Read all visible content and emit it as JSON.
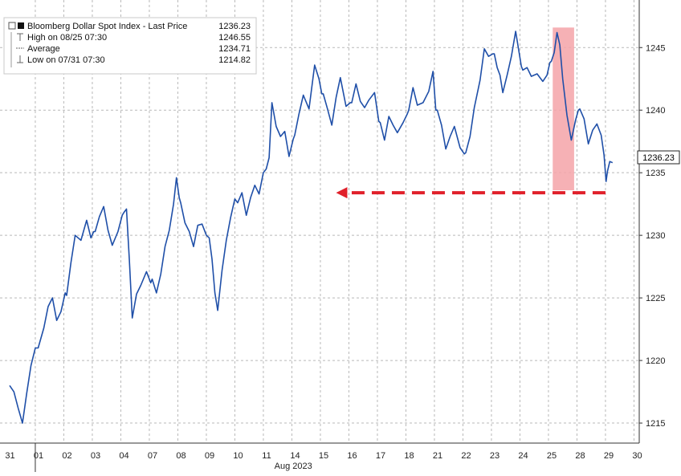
{
  "chart_data": {
    "type": "line",
    "legend": {
      "series_label": "Bloomberg Dollar Spot Index - Last Price",
      "series_value": "1236.23",
      "high_label": "High on 08/25 07:30",
      "high_value": "1246.55",
      "avg_label": "Average",
      "avg_value": "1234.71",
      "low_label": "Low on 07/31 07:30",
      "low_value": "1214.82",
      "placement": "top-left"
    },
    "last_price_tag": "1236.23",
    "x_tick_labels": [
      "31",
      "01",
      "02",
      "03",
      "04",
      "07",
      "08",
      "09",
      "10",
      "11",
      "14",
      "15",
      "16",
      "17",
      "18",
      "21",
      "22",
      "23",
      "24",
      "25",
      "28",
      "29",
      "30"
    ],
    "x_axis_label": "Aug 2023",
    "y_axis_side": "right",
    "y_ticks": [
      1215,
      1220,
      1225,
      1230,
      1235,
      1240,
      1245
    ],
    "ylim": [
      1213.4,
      1248.8
    ],
    "grid": true,
    "series": [
      {
        "color": "#1f4fa8",
        "points": [
          [
            0.0,
            1218.0
          ],
          [
            0.15,
            1217.5
          ],
          [
            0.3,
            1216.2
          ],
          [
            0.45,
            1215.0
          ],
          [
            0.6,
            1217.4
          ],
          [
            0.75,
            1219.6
          ],
          [
            0.9,
            1221.0
          ],
          [
            1.0,
            1221.0
          ],
          [
            1.2,
            1222.6
          ],
          [
            1.35,
            1224.3
          ],
          [
            1.5,
            1225.0
          ],
          [
            1.65,
            1223.2
          ],
          [
            1.8,
            1223.9
          ],
          [
            1.95,
            1225.4
          ],
          [
            2.0,
            1225.2
          ],
          [
            2.15,
            1227.8
          ],
          [
            2.3,
            1230.0
          ],
          [
            2.5,
            1229.6
          ],
          [
            2.7,
            1231.2
          ],
          [
            2.85,
            1229.8
          ],
          [
            2.95,
            1230.3
          ],
          [
            3.0,
            1230.3
          ],
          [
            3.15,
            1231.5
          ],
          [
            3.3,
            1232.3
          ],
          [
            3.45,
            1230.4
          ],
          [
            3.6,
            1229.2
          ],
          [
            3.8,
            1230.3
          ],
          [
            3.95,
            1231.6
          ],
          [
            4.0,
            1231.8
          ],
          [
            4.1,
            1232.1
          ],
          [
            4.2,
            1228.0
          ],
          [
            4.3,
            1223.4
          ],
          [
            4.45,
            1225.3
          ],
          [
            4.6,
            1226.0
          ],
          [
            4.8,
            1227.1
          ],
          [
            4.95,
            1226.2
          ],
          [
            5.0,
            1226.5
          ],
          [
            5.15,
            1225.4
          ],
          [
            5.3,
            1226.9
          ],
          [
            5.45,
            1229.1
          ],
          [
            5.6,
            1230.4
          ],
          [
            5.75,
            1232.5
          ],
          [
            5.85,
            1234.6
          ],
          [
            5.95,
            1233.0
          ],
          [
            6.0,
            1232.6
          ],
          [
            6.15,
            1231.0
          ],
          [
            6.3,
            1230.3
          ],
          [
            6.45,
            1229.1
          ],
          [
            6.6,
            1230.8
          ],
          [
            6.75,
            1230.9
          ],
          [
            6.9,
            1230.0
          ],
          [
            7.0,
            1229.8
          ],
          [
            7.1,
            1228.1
          ],
          [
            7.2,
            1225.4
          ],
          [
            7.3,
            1224.0
          ],
          [
            7.45,
            1227.2
          ],
          [
            7.6,
            1229.6
          ],
          [
            7.75,
            1231.4
          ],
          [
            7.9,
            1232.9
          ],
          [
            8.0,
            1232.6
          ],
          [
            8.15,
            1233.4
          ],
          [
            8.3,
            1231.6
          ],
          [
            8.45,
            1233.0
          ],
          [
            8.6,
            1234.0
          ],
          [
            8.75,
            1233.3
          ],
          [
            8.9,
            1235.0
          ],
          [
            9.0,
            1235.3
          ],
          [
            9.1,
            1236.2
          ],
          [
            9.2,
            1240.6
          ],
          [
            9.35,
            1238.7
          ],
          [
            9.5,
            1237.9
          ],
          [
            9.65,
            1238.3
          ],
          [
            9.8,
            1236.3
          ],
          [
            9.95,
            1237.7
          ],
          [
            10.0,
            1238.0
          ],
          [
            10.15,
            1239.7
          ],
          [
            10.3,
            1241.2
          ],
          [
            10.5,
            1240.1
          ],
          [
            10.7,
            1243.6
          ],
          [
            10.85,
            1242.5
          ],
          [
            10.95,
            1241.3
          ],
          [
            11.0,
            1241.3
          ],
          [
            11.15,
            1240.1
          ],
          [
            11.3,
            1238.8
          ],
          [
            11.45,
            1241.0
          ],
          [
            11.6,
            1242.6
          ],
          [
            11.8,
            1240.3
          ],
          [
            11.95,
            1240.6
          ],
          [
            12.0,
            1240.6
          ],
          [
            12.15,
            1242.1
          ],
          [
            12.3,
            1240.7
          ],
          [
            12.45,
            1240.2
          ],
          [
            12.6,
            1240.8
          ],
          [
            12.8,
            1241.4
          ],
          [
            12.95,
            1239.1
          ],
          [
            13.0,
            1239.0
          ],
          [
            13.15,
            1237.6
          ],
          [
            13.3,
            1239.5
          ],
          [
            13.45,
            1238.8
          ],
          [
            13.6,
            1238.2
          ],
          [
            13.8,
            1239.0
          ],
          [
            13.95,
            1239.7
          ],
          [
            14.0,
            1240.0
          ],
          [
            14.15,
            1241.8
          ],
          [
            14.3,
            1240.4
          ],
          [
            14.5,
            1240.6
          ],
          [
            14.7,
            1241.5
          ],
          [
            14.85,
            1243.1
          ],
          [
            14.95,
            1240.0
          ],
          [
            15.0,
            1240.0
          ],
          [
            15.15,
            1238.8
          ],
          [
            15.3,
            1236.9
          ],
          [
            15.45,
            1237.9
          ],
          [
            15.6,
            1238.7
          ],
          [
            15.8,
            1237.0
          ],
          [
            15.95,
            1236.5
          ],
          [
            16.0,
            1236.6
          ],
          [
            16.15,
            1237.9
          ],
          [
            16.3,
            1240.2
          ],
          [
            16.5,
            1242.4
          ],
          [
            16.65,
            1244.9
          ],
          [
            16.8,
            1244.3
          ],
          [
            16.95,
            1244.5
          ],
          [
            17.0,
            1244.5
          ],
          [
            17.1,
            1243.4
          ],
          [
            17.2,
            1242.8
          ],
          [
            17.3,
            1241.4
          ],
          [
            17.45,
            1242.8
          ],
          [
            17.6,
            1244.3
          ],
          [
            17.75,
            1246.3
          ],
          [
            17.95,
            1243.5
          ],
          [
            18.0,
            1243.2
          ],
          [
            18.15,
            1243.4
          ],
          [
            18.3,
            1242.7
          ],
          [
            18.5,
            1242.9
          ],
          [
            18.7,
            1242.3
          ],
          [
            18.85,
            1242.8
          ],
          [
            18.95,
            1243.8
          ],
          [
            19.0,
            1243.9
          ],
          [
            19.1,
            1244.6
          ],
          [
            19.2,
            1246.2
          ],
          [
            19.3,
            1245.2
          ],
          [
            19.4,
            1242.5
          ],
          [
            19.55,
            1239.6
          ],
          [
            19.7,
            1237.6
          ],
          [
            19.85,
            1239.2
          ],
          [
            19.95,
            1240.0
          ],
          [
            20.0,
            1240.1
          ],
          [
            20.15,
            1239.3
          ],
          [
            20.3,
            1237.3
          ],
          [
            20.45,
            1238.4
          ],
          [
            20.6,
            1238.9
          ],
          [
            20.75,
            1238.0
          ],
          [
            20.85,
            1236.4
          ],
          [
            20.92,
            1234.3
          ],
          [
            20.97,
            1235.1
          ],
          [
            21.05,
            1235.9
          ],
          [
            21.15,
            1235.8
          ]
        ]
      }
    ],
    "annotations": {
      "highlight_band": {
        "x_start": 19.05,
        "x_end": 19.8,
        "y_start": 1233.6,
        "y_end": 1246.6,
        "color": "#f4a3a8"
      },
      "arrow": {
        "x_from": 20.9,
        "x_to": 11.45,
        "y": 1233.4,
        "color": "#e0202a",
        "style": "dashed"
      }
    }
  }
}
